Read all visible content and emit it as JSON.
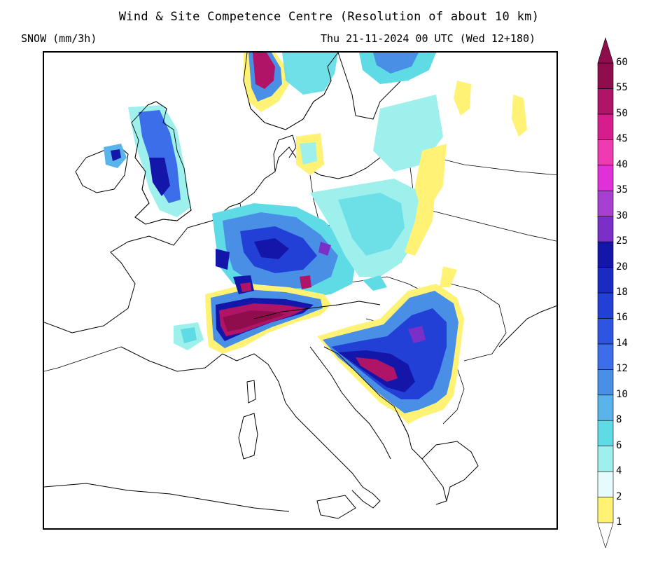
{
  "header": {
    "title": "Wind & Site Competence Centre (Resolution of about 10 km)",
    "variable": "SNOW (mm/3h)",
    "valid_time": "Thu 21-11-2024 00 UTC (Wed 12+180)"
  },
  "legend": {
    "levels": [
      {
        "label": "1",
        "color": "#ffffff"
      },
      {
        "label": "2",
        "color": "#fff275"
      },
      {
        "label": "4",
        "color": "#e6fbfb"
      },
      {
        "label": "6",
        "color": "#9ef0ec"
      },
      {
        "label": "8",
        "color": "#5fdbe6"
      },
      {
        "label": "10",
        "color": "#58b4ea"
      },
      {
        "label": "12",
        "color": "#4a8fe6"
      },
      {
        "label": "14",
        "color": "#3b6ee8"
      },
      {
        "label": "16",
        "color": "#2f55e0"
      },
      {
        "label": "18",
        "color": "#2340d6"
      },
      {
        "label": "20",
        "color": "#1a2bc2"
      },
      {
        "label": "25",
        "color": "#1316a8"
      },
      {
        "label": "30",
        "color": "#7a2fc8"
      },
      {
        "label": "35",
        "color": "#a73fd0"
      },
      {
        "label": "40",
        "color": "#e030d8"
      },
      {
        "label": "45",
        "color": "#ee3cb0"
      },
      {
        "label": "50",
        "color": "#d61d8c"
      },
      {
        "label": "55",
        "color": "#b01466"
      },
      {
        "label": "60",
        "color": "#8f0d4c"
      }
    ],
    "top_color": "#8f0d4c"
  },
  "snow_areas": [
    {
      "name": "snow-area-scandinavia-west",
      "max_level": "60"
    },
    {
      "name": "snow-area-great-britain",
      "max_level": "25"
    },
    {
      "name": "snow-area-central-europe",
      "max_level": "25"
    },
    {
      "name": "snow-area-alps",
      "max_level": "60"
    },
    {
      "name": "snow-area-balkans",
      "max_level": "50"
    },
    {
      "name": "snow-area-poland",
      "max_level": "10"
    }
  ]
}
